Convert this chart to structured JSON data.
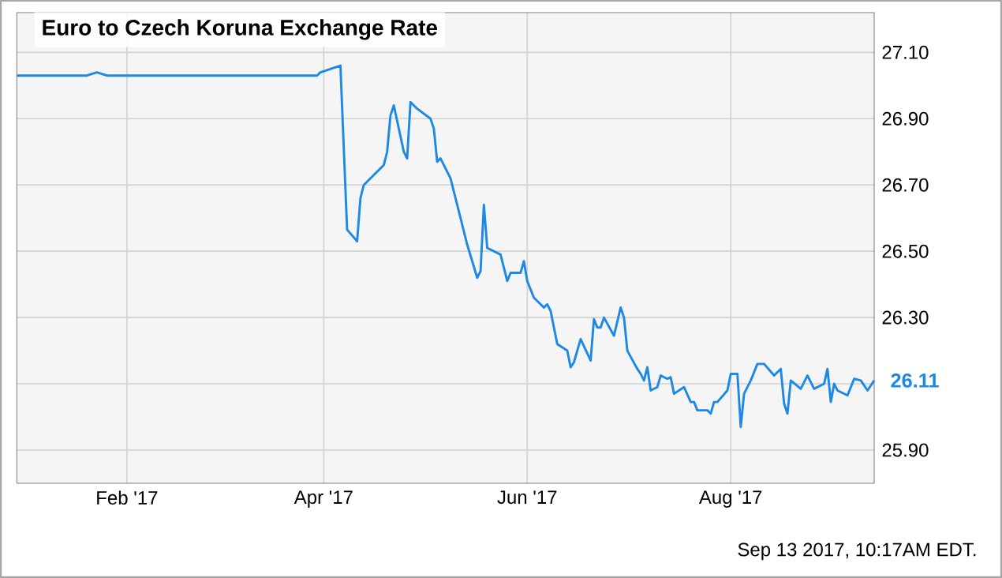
{
  "chart_data": {
    "type": "line",
    "title": "Euro to Czech Koruna Exchange Rate",
    "x": [
      "2016-12-30",
      "2017-01-20",
      "2017-01-23",
      "2017-01-26",
      "2017-03-30",
      "2017-03-31",
      "2017-04-06",
      "2017-04-08",
      "2017-04-11",
      "2017-04-12",
      "2017-04-13",
      "2017-04-19",
      "2017-04-20",
      "2017-04-21",
      "2017-04-22",
      "2017-04-25",
      "2017-04-26",
      "2017-04-27",
      "2017-04-29",
      "2017-05-03",
      "2017-05-04",
      "2017-05-05",
      "2017-05-06",
      "2017-05-09",
      "2017-05-12",
      "2017-05-14",
      "2017-05-17",
      "2017-05-18",
      "2017-05-19",
      "2017-05-20",
      "2017-05-24",
      "2017-05-26",
      "2017-05-27",
      "2017-05-30",
      "2017-05-31",
      "2017-06-01",
      "2017-06-03",
      "2017-06-06",
      "2017-06-07",
      "2017-06-08",
      "2017-06-10",
      "2017-06-13",
      "2017-06-14",
      "2017-06-15",
      "2017-06-17",
      "2017-06-20",
      "2017-06-21",
      "2017-06-22",
      "2017-06-23",
      "2017-06-24",
      "2017-06-27",
      "2017-06-29",
      "2017-06-30",
      "2017-07-01",
      "2017-07-04",
      "2017-07-05",
      "2017-07-06",
      "2017-07-07",
      "2017-07-08",
      "2017-07-10",
      "2017-07-11",
      "2017-07-13",
      "2017-07-14",
      "2017-07-15",
      "2017-07-18",
      "2017-07-20",
      "2017-07-21",
      "2017-07-22",
      "2017-07-25",
      "2017-07-26",
      "2017-07-27",
      "2017-07-28",
      "2017-07-31",
      "2017-08-01",
      "2017-08-03",
      "2017-08-04",
      "2017-08-05",
      "2017-08-07",
      "2017-08-09",
      "2017-08-11",
      "2017-08-14",
      "2017-08-16",
      "2017-08-17",
      "2017-08-18",
      "2017-08-19",
      "2017-08-22",
      "2017-08-24",
      "2017-08-26",
      "2017-08-29",
      "2017-08-30",
      "2017-08-31",
      "2017-09-01",
      "2017-09-02",
      "2017-09-05",
      "2017-09-07",
      "2017-09-09",
      "2017-09-11",
      "2017-09-13"
    ],
    "series": [
      {
        "color": "#1e88e5",
        "values": [
          27.03,
          27.03,
          27.04,
          27.03,
          27.03,
          27.04,
          27.06,
          26.565,
          26.53,
          26.66,
          26.7,
          26.76,
          26.8,
          26.91,
          26.94,
          26.8,
          26.78,
          26.95,
          26.93,
          26.9,
          26.87,
          26.77,
          26.78,
          26.72,
          26.6,
          26.52,
          26.42,
          26.44,
          26.64,
          26.51,
          26.49,
          26.41,
          26.435,
          26.435,
          26.47,
          26.41,
          26.36,
          26.33,
          26.34,
          26.32,
          26.22,
          26.2,
          26.15,
          26.165,
          26.235,
          26.17,
          26.295,
          26.27,
          26.27,
          26.3,
          26.245,
          26.33,
          26.3,
          26.2,
          26.145,
          26.13,
          26.11,
          26.15,
          26.08,
          26.09,
          26.125,
          26.115,
          26.12,
          26.07,
          26.09,
          26.045,
          26.045,
          26.02,
          26.02,
          26.01,
          26.045,
          26.045,
          26.08,
          26.13,
          26.13,
          25.97,
          26.07,
          26.11,
          26.16,
          26.16,
          26.125,
          26.145,
          26.04,
          26.01,
          26.11,
          26.085,
          26.125,
          26.085,
          26.1,
          26.145,
          26.045,
          26.1,
          26.08,
          26.065,
          26.115,
          26.11,
          26.08,
          26.11
        ]
      }
    ],
    "xlim": [
      "2016-12-30",
      "2017-09-13"
    ],
    "xticks": [
      {
        "value": "2017-02-01",
        "label": "Feb '17"
      },
      {
        "value": "2017-04-01",
        "label": "Apr '17"
      },
      {
        "value": "2017-06-01",
        "label": "Jun '17"
      },
      {
        "value": "2017-08-01",
        "label": "Aug '17"
      }
    ],
    "ylim": [
      25.8,
      27.22
    ],
    "yticks": [
      {
        "value": 25.9,
        "label": "25.90"
      },
      {
        "value": 26.1,
        "label": null
      },
      {
        "value": 26.3,
        "label": "26.30"
      },
      {
        "value": 26.5,
        "label": "26.50"
      },
      {
        "value": 26.7,
        "label": "26.70"
      },
      {
        "value": 26.9,
        "label": "26.90"
      },
      {
        "value": 27.1,
        "label": "27.10"
      }
    ],
    "grid": true,
    "annotations": [
      {
        "text": "26.11",
        "x": "2017-09-13",
        "y": 26.11
      },
      "Sep 13 2017, 10:17AM EDT."
    ]
  }
}
